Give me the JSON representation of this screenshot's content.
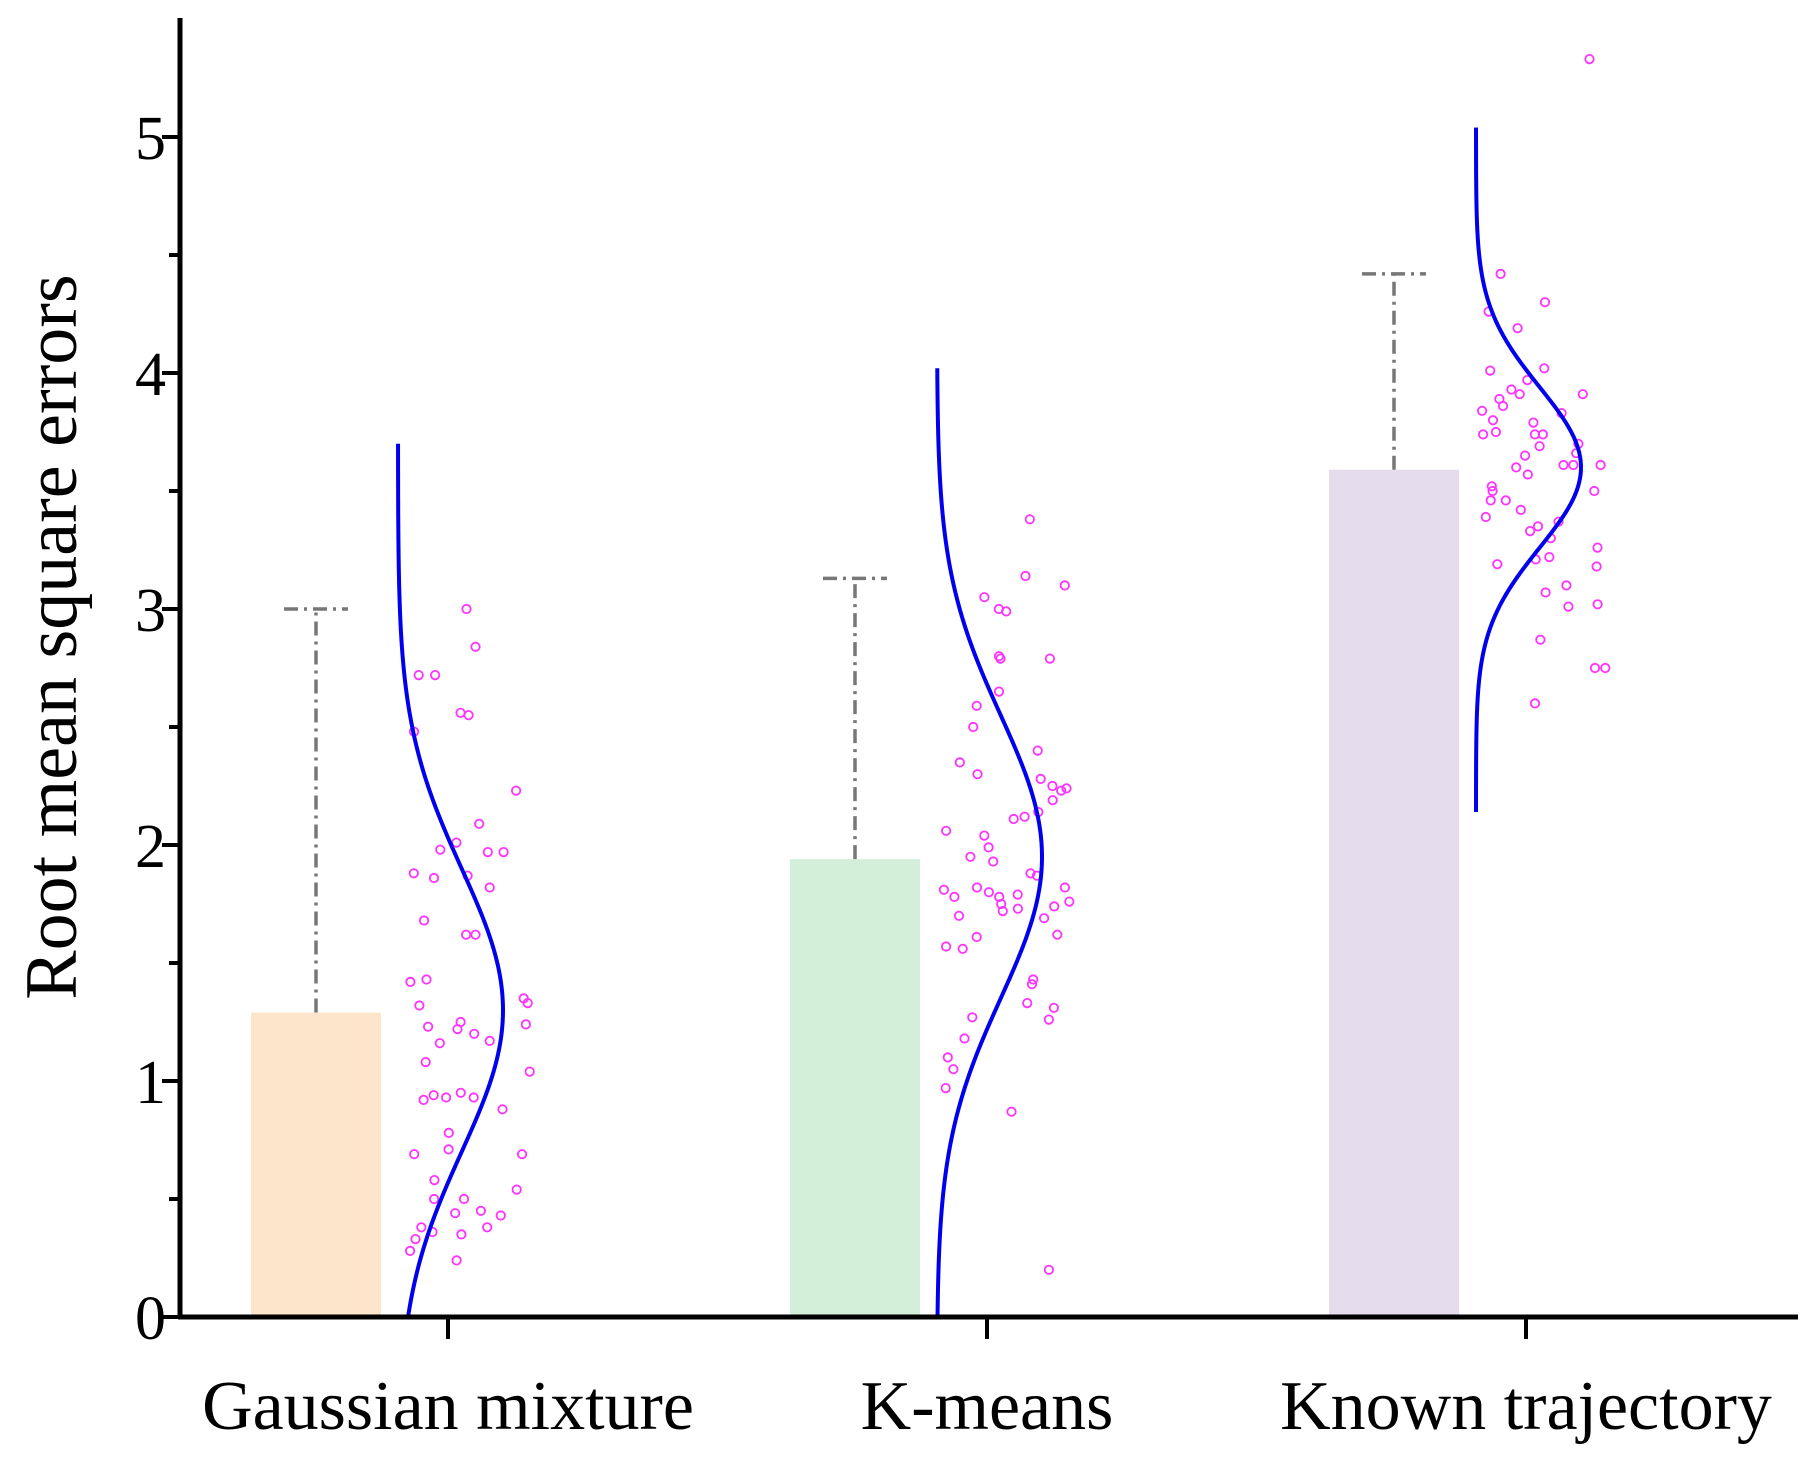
{
  "chart_data": {
    "type": "bar",
    "title": "",
    "xlabel": "",
    "ylabel": "Root mean square errors",
    "ylim": [
      0,
      5.5
    ],
    "yticks": [
      0,
      1,
      2,
      3,
      4,
      5
    ],
    "yminor_ticks": [
      0.5,
      1.5,
      2.5,
      3.5,
      4.5
    ],
    "categories": [
      "Gaussian mixture",
      "K-means",
      "Known trajectory"
    ],
    "values": [
      1.29,
      1.94,
      3.59
    ],
    "error_upper": [
      3.0,
      3.13,
      4.42
    ],
    "bar_colors": [
      "#fde5cc",
      "#d3efda",
      "#e5dced"
    ],
    "distributions": [
      {
        "mean": 1.3,
        "sd": 0.6,
        "ymin": 0.0,
        "ymax": 3.7,
        "points": [
          3.0,
          2.84,
          2.72,
          2.72,
          2.56,
          2.55,
          2.48,
          2.23,
          2.09,
          2.01,
          1.98,
          1.97,
          1.97,
          1.88,
          1.87,
          1.86,
          1.82,
          1.68,
          1.62,
          1.62,
          1.43,
          1.42,
          1.35,
          1.33,
          1.32,
          1.25,
          1.24,
          1.23,
          1.22,
          1.2,
          1.17,
          1.16,
          1.08,
          1.04,
          0.95,
          0.94,
          0.93,
          0.93,
          0.92,
          0.88,
          0.78,
          0.71,
          0.69,
          0.69,
          0.58,
          0.54,
          0.5,
          0.5,
          0.45,
          0.44,
          0.43,
          0.38,
          0.38,
          0.36,
          0.35,
          0.33,
          0.28,
          0.24
        ]
      },
      {
        "mean": 1.95,
        "sd": 0.6,
        "ymin": 0.0,
        "ymax": 4.02,
        "points": [
          3.38,
          3.14,
          3.1,
          3.05,
          3.0,
          2.99,
          2.8,
          2.79,
          2.79,
          2.65,
          2.59,
          2.5,
          2.4,
          2.35,
          2.3,
          2.28,
          2.25,
          2.24,
          2.23,
          2.19,
          2.14,
          2.12,
          2.11,
          2.06,
          2.04,
          1.99,
          1.95,
          1.93,
          1.88,
          1.87,
          1.82,
          1.82,
          1.81,
          1.8,
          1.79,
          1.78,
          1.78,
          1.76,
          1.75,
          1.74,
          1.73,
          1.72,
          1.7,
          1.69,
          1.62,
          1.61,
          1.57,
          1.56,
          1.43,
          1.41,
          1.33,
          1.31,
          1.27,
          1.26,
          1.18,
          1.1,
          1.05,
          0.97,
          0.87,
          0.2
        ]
      },
      {
        "mean": 3.6,
        "sd": 0.34,
        "ymin": 2.14,
        "ymax": 5.04,
        "points": [
          5.33,
          4.42,
          4.3,
          4.26,
          4.19,
          4.02,
          4.01,
          3.97,
          3.93,
          3.91,
          3.91,
          3.89,
          3.86,
          3.84,
          3.83,
          3.8,
          3.79,
          3.75,
          3.74,
          3.74,
          3.74,
          3.7,
          3.69,
          3.66,
          3.65,
          3.61,
          3.61,
          3.61,
          3.6,
          3.57,
          3.52,
          3.5,
          3.5,
          3.46,
          3.46,
          3.42,
          3.39,
          3.37,
          3.35,
          3.33,
          3.3,
          3.26,
          3.22,
          3.21,
          3.19,
          3.18,
          3.1,
          3.07,
          3.02,
          3.01,
          2.87,
          2.75,
          2.75,
          2.6
        ]
      }
    ]
  },
  "colors": {
    "curve": "#0000ee",
    "points": "#ff33ff",
    "error_bar": "#777777",
    "axis": "#000000"
  }
}
